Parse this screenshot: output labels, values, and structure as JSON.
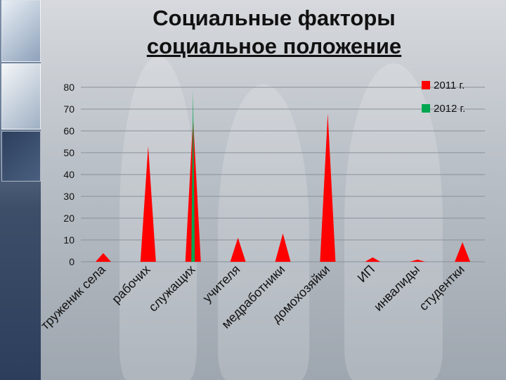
{
  "title": {
    "line1": "Социальные факторы",
    "line2": "социальное положение"
  },
  "colors": {
    "series_2011": "#ff0000",
    "series_2012": "#00a650"
  },
  "chart_data": {
    "type": "area",
    "categories": [
      "труженик села",
      "рабочих",
      "служащих",
      "учителя",
      "медработники",
      "домохозяйки",
      "ИП",
      "инвалиды",
      "студентки"
    ],
    "series": [
      {
        "name": "2011 г.",
        "values": [
          4,
          53,
          66,
          11,
          13,
          68,
          2,
          1,
          9
        ]
      },
      {
        "name": "2012 г.",
        "values": [
          0,
          0,
          79,
          0,
          0,
          0,
          0,
          0,
          0
        ]
      }
    ],
    "yticks": [
      0,
      10,
      20,
      30,
      40,
      50,
      60,
      70,
      80
    ],
    "ylim": [
      0,
      80
    ],
    "grid": true,
    "legend": "top-right"
  }
}
